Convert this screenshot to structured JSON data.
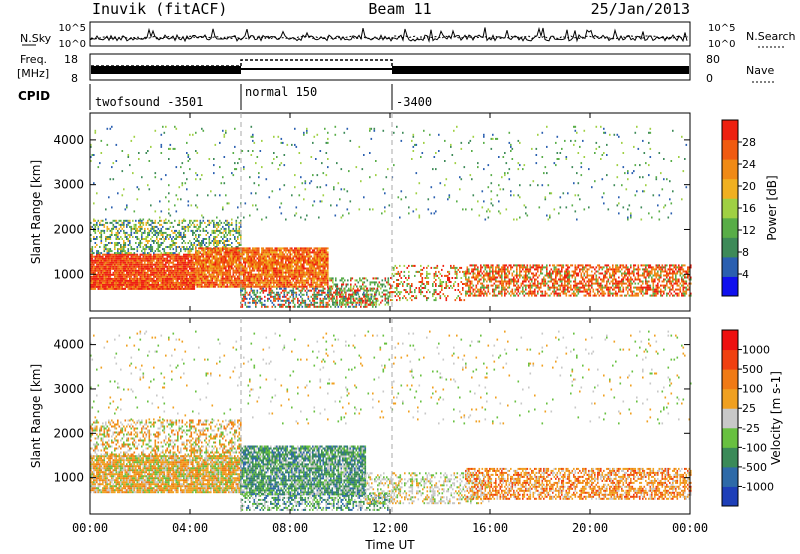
{
  "header": {
    "title": "Inuvik (fitACF)",
    "beam": "Beam 11",
    "date": "25/Jan/2013"
  },
  "top_panels": {
    "nsky_label": "N.Sky",
    "nsky_ticks": [
      "10^5",
      "10^0"
    ],
    "nsearch_label": "N.Search",
    "nsearch_ticks": [
      "10^5",
      "10^0"
    ],
    "freq_label_1": "Freq.",
    "freq_label_2": "[MHz]",
    "freq_ticks": [
      "18",
      "8"
    ],
    "nave_label": "Nave",
    "nave_ticks": [
      "80",
      "0"
    ],
    "cpid_label": "CPID",
    "cpid_segments": [
      {
        "label": "twofsound -3501",
        "start": 0,
        "end": 6
      },
      {
        "label": "normal 150",
        "start": 6,
        "end": 12
      },
      {
        "label": "-3400",
        "start": 12,
        "end": 24
      }
    ]
  },
  "power_colorbar": {
    "title": "Power [dB]",
    "ticks": [
      "28",
      "24",
      "20",
      "16",
      "12",
      "8",
      "4"
    ],
    "colors": [
      "#1010ee",
      "#2a5fb0",
      "#3d8a58",
      "#58ad47",
      "#9fd043",
      "#f0b020",
      "#f08a15",
      "#f05a10",
      "#ee2010"
    ]
  },
  "velocity_colorbar": {
    "title": "Velocity [m s-1]",
    "ticks": [
      "1000",
      "500",
      "100",
      "25",
      "-25",
      "-100",
      "-500",
      "-1000"
    ],
    "colors": [
      "#1e3fb8",
      "#2e6aa8",
      "#3a8a58",
      "#68c040",
      "#c8c8c8",
      "#f0a020",
      "#f07a15",
      "#f04010",
      "#ee1010"
    ]
  },
  "chart_data": {
    "type": "heatmap",
    "title": "Inuvik (fitACF) Beam 11 25/Jan/2013",
    "xlabel": "Time UT",
    "ylabel": "Slant Range [km]",
    "xlim": [
      0,
      24
    ],
    "ylim": [
      180,
      4600
    ],
    "x_ticks": [
      "00:00",
      "04:00",
      "08:00",
      "12:00",
      "16:00",
      "20:00",
      "00:00"
    ],
    "y_ticks": [
      "1000",
      "2000",
      "3000",
      "4000"
    ],
    "mode_change_times": [
      6,
      12
    ],
    "panels": [
      "power",
      "velocity"
    ],
    "power_band_km": [
      {
        "x_start": 0,
        "x_end": 4.2,
        "range": [
          650,
          1450
        ]
      },
      {
        "x_start": 4.2,
        "x_end": 9.5,
        "range": [
          700,
          1600
        ]
      },
      {
        "x_start": 15,
        "x_end": 24,
        "range": [
          500,
          1200
        ]
      }
    ]
  }
}
